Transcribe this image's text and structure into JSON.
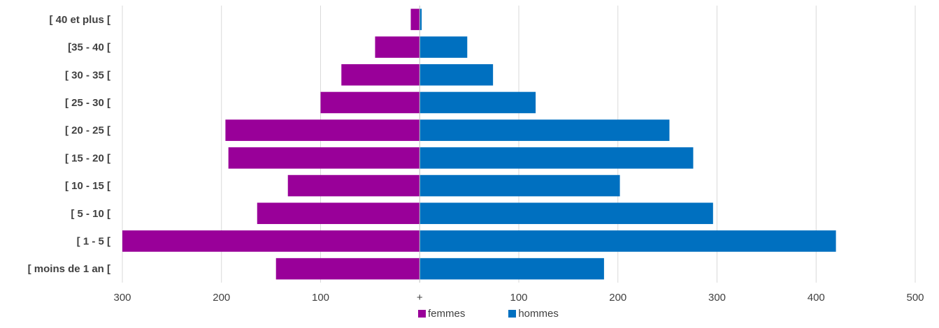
{
  "colors": {
    "femmes": "#990099",
    "hommes": "#0070C0",
    "grid": "#d9d9d9",
    "text": "#404040"
  },
  "chart_data": {
    "type": "bar",
    "orientation": "horizontal",
    "layout": "population-pyramid",
    "categories": [
      "[ moins de 1 an [",
      "[ 1 - 5 [",
      "[ 5 - 10 [",
      "[ 10 - 15 [",
      "[ 15 - 20 [",
      "[ 20 - 25 [",
      "[ 25 - 30 [",
      "[ 30 - 35 [",
      "[35 - 40 [",
      "[ 40 et plus ["
    ],
    "series": [
      {
        "name": "femmes",
        "color": "#990099",
        "values": [
          145,
          300,
          164,
          133,
          193,
          196,
          100,
          79,
          45,
          9
        ]
      },
      {
        "name": "hommes",
        "color": "#0070C0",
        "values": [
          186,
          420,
          296,
          202,
          276,
          252,
          117,
          74,
          48,
          2
        ]
      }
    ],
    "xlim": [
      -300,
      500
    ],
    "xticks": [
      -300,
      -200,
      -100,
      0,
      100,
      200,
      300,
      400,
      500
    ],
    "xtick_labels": [
      "300",
      "200",
      "100",
      "+",
      "100",
      "200",
      "300",
      "400",
      "500"
    ],
    "grid": true,
    "legend_position": "bottom"
  }
}
